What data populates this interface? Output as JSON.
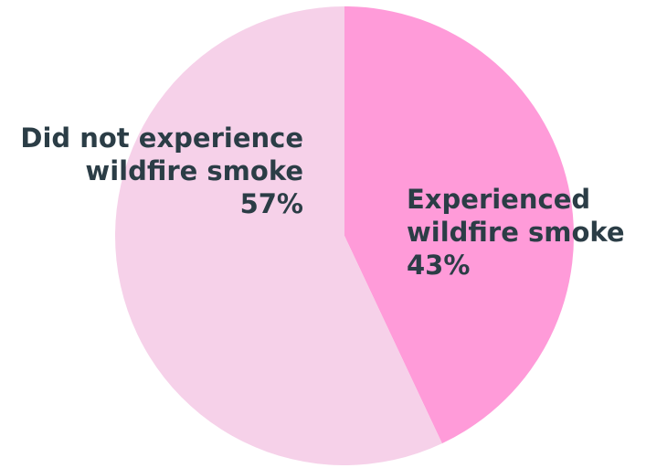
{
  "chart_data": {
    "type": "pie",
    "title": "",
    "slices": [
      {
        "label_lines": [
          "Experienced",
          "wildfire smoke"
        ],
        "value": 43,
        "value_label": "43%",
        "color": "#ff9bd9"
      },
      {
        "label_lines": [
          "Did not experience",
          "wildfire smoke"
        ],
        "value": 57,
        "value_label": "57%",
        "color": "#f6d1e9"
      }
    ],
    "start_angle_deg": 0,
    "direction": "clockwise",
    "label_color": "#2b3d46",
    "legend": "none"
  }
}
